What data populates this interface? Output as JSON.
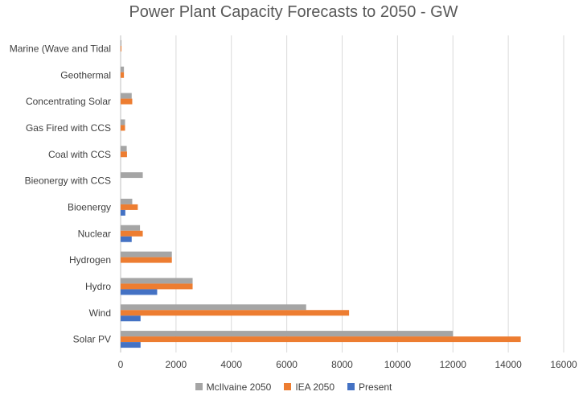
{
  "chart_data": {
    "type": "bar",
    "orientation": "horizontal",
    "title": "Power Plant Capacity Forecasts to 2050 - GW",
    "categories": [
      "Solar PV",
      "Wind",
      "Hydro",
      "Hydrogen",
      "Nuclear",
      "Bioenergy",
      "Bieonergy with CCS",
      "Coal with CCS",
      "Gas Fired with CCS",
      "Concentrating Solar",
      "Geothermal",
      "Marine (Wave and Tidal"
    ],
    "series": [
      {
        "name": "McIlvaine 2050",
        "color": "#a5a5a5",
        "values": [
          12000,
          6700,
          2600,
          1850,
          700,
          420,
          800,
          220,
          160,
          400,
          120,
          30
        ]
      },
      {
        "name": "IEA 2050",
        "color": "#ed7d31",
        "values": [
          14450,
          8250,
          2600,
          1850,
          800,
          620,
          0,
          230,
          160,
          420,
          120,
          30
        ]
      },
      {
        "name": "Present",
        "color": "#4472c4",
        "values": [
          720,
          720,
          1320,
          0,
          400,
          170,
          0,
          0,
          0,
          0,
          0,
          0
        ]
      }
    ],
    "xlim": [
      0,
      16000
    ],
    "xticks": [
      "0",
      "2000",
      "4000",
      "6000",
      "8000",
      "10000",
      "12000",
      "14000",
      "16000"
    ],
    "grid": "vertical",
    "legend_position": "bottom"
  }
}
